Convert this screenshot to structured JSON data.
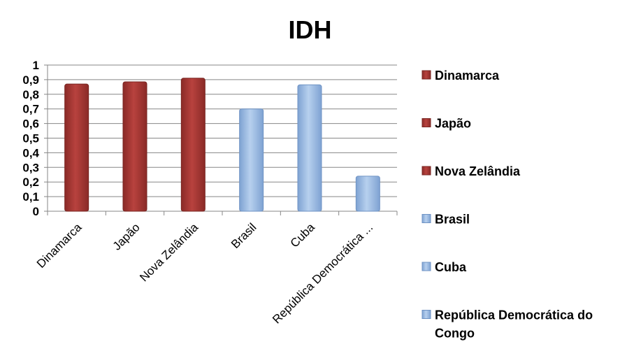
{
  "chart_data": {
    "type": "bar",
    "title": "IDH",
    "categories": [
      "Dinamarca",
      "Japão",
      "Nova Zelândia",
      "Brasil",
      "Cuba",
      "República Democrática ..."
    ],
    "values": [
      0.87,
      0.885,
      0.91,
      0.7,
      0.865,
      0.24
    ],
    "ylim": [
      0,
      1
    ],
    "yticks": [
      "0",
      "0,1",
      "0,2",
      "0,3",
      "0,4",
      "0,5",
      "0,6",
      "0,7",
      "0,8",
      "0,9",
      "1"
    ],
    "grid": true,
    "legend_position": "right",
    "legend": [
      {
        "label": "Dinamarca",
        "color": "#a83a36"
      },
      {
        "label": "Japão",
        "color": "#a83a36"
      },
      {
        "label": "Nova Zelândia",
        "color": "#a83a36"
      },
      {
        "label": "Brasil",
        "color": "#8fb1dc"
      },
      {
        "label": "Cuba",
        "color": "#8fb1dc"
      },
      {
        "label": "República Democrática do Congo",
        "color": "#8fb1dc"
      }
    ],
    "bar_colors": [
      "#a83a36",
      "#a83a36",
      "#a83a36",
      "#8fb1dc",
      "#8fb1dc",
      "#8fb1dc"
    ]
  }
}
